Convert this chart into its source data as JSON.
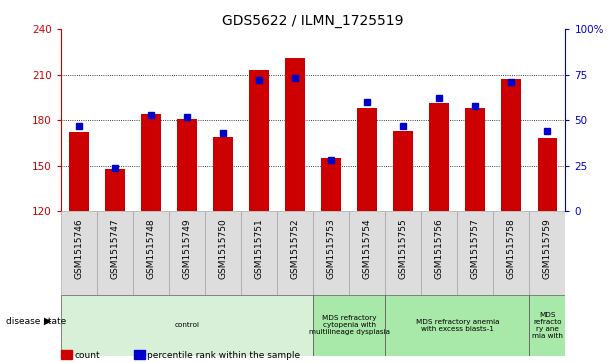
{
  "title": "GDS5622 / ILMN_1725519",
  "samples": [
    "GSM1515746",
    "GSM1515747",
    "GSM1515748",
    "GSM1515749",
    "GSM1515750",
    "GSM1515751",
    "GSM1515752",
    "GSM1515753",
    "GSM1515754",
    "GSM1515755",
    "GSM1515756",
    "GSM1515757",
    "GSM1515758",
    "GSM1515759"
  ],
  "counts": [
    172,
    148,
    184,
    181,
    169,
    213,
    221,
    155,
    188,
    173,
    191,
    188,
    207,
    168
  ],
  "percentiles": [
    47,
    24,
    53,
    52,
    43,
    72,
    73,
    28,
    60,
    47,
    62,
    58,
    71,
    44
  ],
  "ymin": 120,
  "ymax": 240,
  "yright_min": 0,
  "yright_max": 100,
  "yticks_left": [
    120,
    150,
    180,
    210,
    240
  ],
  "yticks_right": [
    0,
    25,
    50,
    75,
    100
  ],
  "bar_color": "#cc0000",
  "percentile_color": "#0000cc",
  "disease_groups": [
    {
      "label": "control",
      "start": 0,
      "end": 7,
      "color": "#d8f0d8"
    },
    {
      "label": "MDS refractory\ncytopenia with\nmultilineage dysplasia",
      "start": 7,
      "end": 9,
      "color": "#a8e8a8"
    },
    {
      "label": "MDS refractory anemia\nwith excess blasts-1",
      "start": 9,
      "end": 13,
      "color": "#a8e8a8"
    },
    {
      "label": "MDS\nrefracto\nry ane\nmia with",
      "start": 13,
      "end": 14,
      "color": "#a8e8a8"
    }
  ],
  "disease_state_label": "disease state",
  "legend_count_label": "count",
  "legend_percentile_label": "percentile rank within the sample",
  "bar_width": 0.55,
  "tick_label_fontsize": 6.5,
  "title_fontsize": 10
}
